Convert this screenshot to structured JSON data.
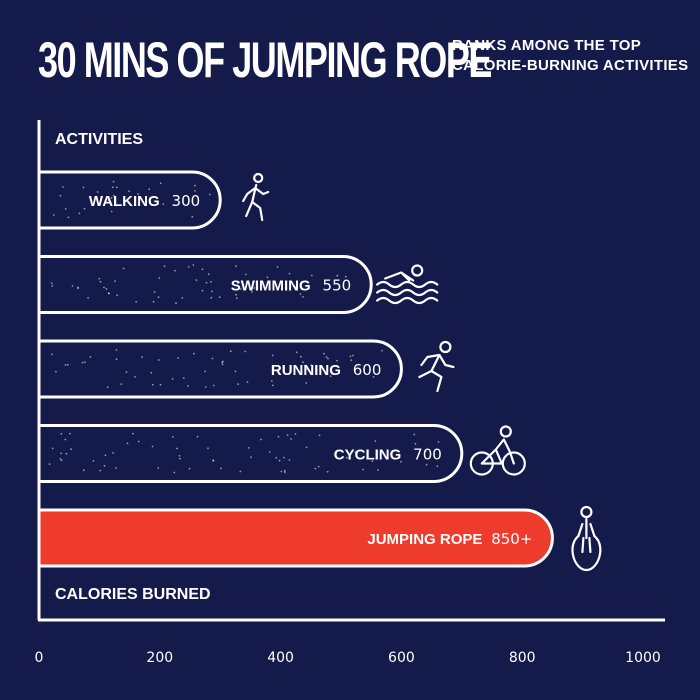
{
  "header": {
    "title": "30 MINS OF JUMPING ROPE",
    "subtitle": "RANKS AMONG THE TOP CALORIE-BURNING ACTIVITIES"
  },
  "chart_data": {
    "type": "bar",
    "orientation": "horizontal",
    "title": "30 MINS OF JUMPING ROPE",
    "subtitle": "RANKS AMONG THE TOP CALORIE-BURNING ACTIVITIES",
    "ylabel": "ACTIVITIES",
    "xlabel": "CALORIES BURNED",
    "categories": [
      "WALKING",
      "SWIMMING",
      "RUNNING",
      "CYCLING",
      "JUMPING ROPE"
    ],
    "value_labels": [
      "300",
      "550",
      "600",
      "700",
      "850+"
    ],
    "values": [
      300,
      550,
      600,
      700,
      850
    ],
    "icons": [
      "walking-icon",
      "swimming-icon",
      "running-icon",
      "cycling-icon",
      "jump-rope-icon"
    ],
    "highlight_index": 4,
    "xlim": [
      0,
      1000
    ],
    "xticks": [
      0,
      200,
      400,
      600,
      800,
      1000
    ],
    "grid": false,
    "colors": {
      "background": "#141a4a",
      "bar_outline": "#ffffff",
      "highlight": "#ee3b2b"
    }
  }
}
